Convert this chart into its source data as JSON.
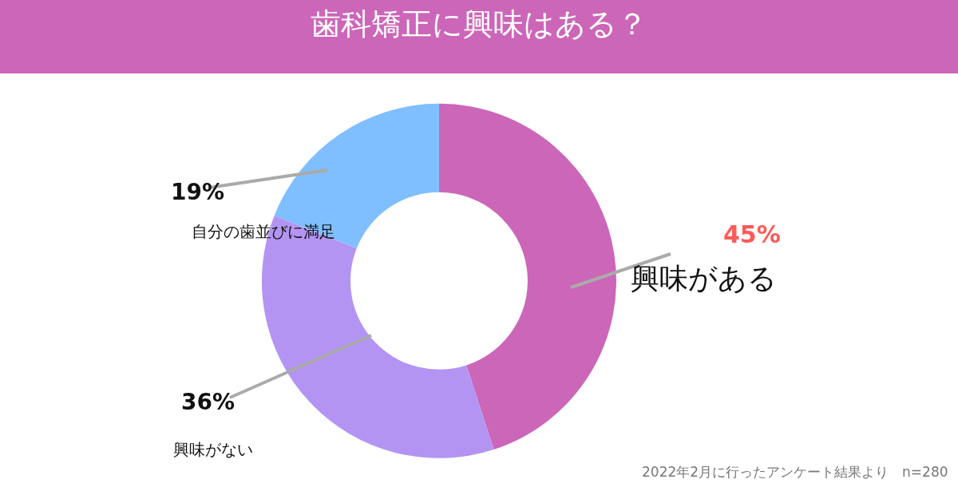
{
  "chart_data": {
    "type": "donut",
    "title": "歯科矯正に興味はある？",
    "categories": [
      "興味がある",
      "興味がない",
      "自分の歯並びに満足"
    ],
    "values": [
      45,
      36,
      19
    ],
    "value_labels": [
      "45%",
      "36%",
      "19%"
    ],
    "colors": [
      "#cc66b8",
      "#b394f3",
      "#80bfff"
    ],
    "annotations": [
      "2022年2月に行ったアンケート結果より　n=280"
    ],
    "legend": false
  }
}
